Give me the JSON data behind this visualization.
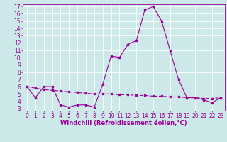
{
  "x": [
    0,
    1,
    2,
    3,
    4,
    5,
    6,
    7,
    8,
    9,
    10,
    11,
    12,
    13,
    14,
    15,
    16,
    17,
    18,
    19,
    20,
    21,
    22,
    23
  ],
  "line1": [
    6,
    4.5,
    6,
    6,
    3.5,
    3.2,
    3.5,
    3.5,
    3.2,
    6.3,
    10.2,
    10.0,
    11.8,
    12.3,
    16.5,
    17.0,
    15.0,
    11.0,
    7.0,
    4.5,
    4.5,
    4.2,
    3.8,
    4.5
  ],
  "line2": [
    6,
    5.8,
    5.6,
    5.5,
    5.4,
    5.3,
    5.2,
    5.1,
    5.0,
    5.0,
    5.0,
    4.9,
    4.9,
    4.8,
    4.8,
    4.7,
    4.7,
    4.6,
    4.6,
    4.5,
    4.5,
    4.4,
    4.4,
    4.5
  ],
  "line_color": "#990099",
  "bg_color": "#cce8e8",
  "grid_color": "#ffffff",
  "xlabel": "Windchill (Refroidissement éolien,°C)",
  "xlabel_fontsize": 6.0,
  "tick_fontsize": 5.5,
  "ylim": [
    3,
    17
  ],
  "xlim": [
    -0.5,
    23.5
  ],
  "yticks": [
    3,
    4,
    5,
    6,
    7,
    8,
    9,
    10,
    11,
    12,
    13,
    14,
    15,
    16,
    17
  ],
  "xticks": [
    0,
    1,
    2,
    3,
    4,
    5,
    6,
    7,
    8,
    9,
    10,
    11,
    12,
    13,
    14,
    15,
    16,
    17,
    18,
    19,
    20,
    21,
    22,
    23
  ]
}
